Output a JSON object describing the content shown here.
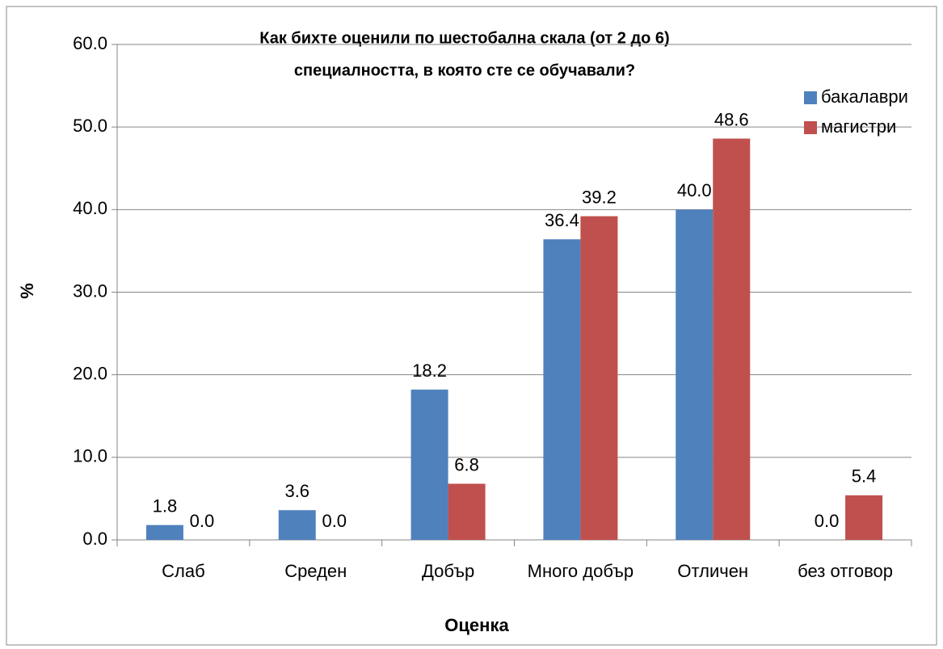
{
  "chart_data": {
    "type": "bar",
    "title": [
      "Как бихте оценили по шестобална скала (от 2 до 6)",
      "специалността, в която сте се обучавали?"
    ],
    "x_label": "Оценка",
    "y_label": "%",
    "categories": [
      "Слаб",
      "Среден",
      "Добър",
      "Много добър",
      "Отличен",
      "без отговор"
    ],
    "series": [
      {
        "name": "бакалаври",
        "color": "#4f81bd",
        "values": [
          1.8,
          3.6,
          18.2,
          36.4,
          40.0,
          0.0
        ],
        "value_labels": [
          "1.8",
          "3.6",
          "18.2",
          "36.4",
          "40.0",
          "0.0"
        ]
      },
      {
        "name": "магистри",
        "color": "#c0504d",
        "values": [
          0.0,
          0.0,
          6.8,
          39.2,
          48.6,
          5.4
        ],
        "value_labels": [
          "0.0",
          "0.0",
          "6.8",
          "39.2",
          "48.6",
          "5.4"
        ]
      }
    ],
    "ylim": [
      0,
      60
    ],
    "yticks": [
      {
        "value": 0,
        "label": "0.0"
      },
      {
        "value": 10,
        "label": "10.0"
      },
      {
        "value": 20,
        "label": "20.0"
      },
      {
        "value": 30,
        "label": "30.0"
      },
      {
        "value": 40,
        "label": "40.0"
      },
      {
        "value": 50,
        "label": "50.0"
      },
      {
        "value": 60,
        "label": "60.0"
      }
    ],
    "grid": true,
    "legend": "upper right"
  }
}
